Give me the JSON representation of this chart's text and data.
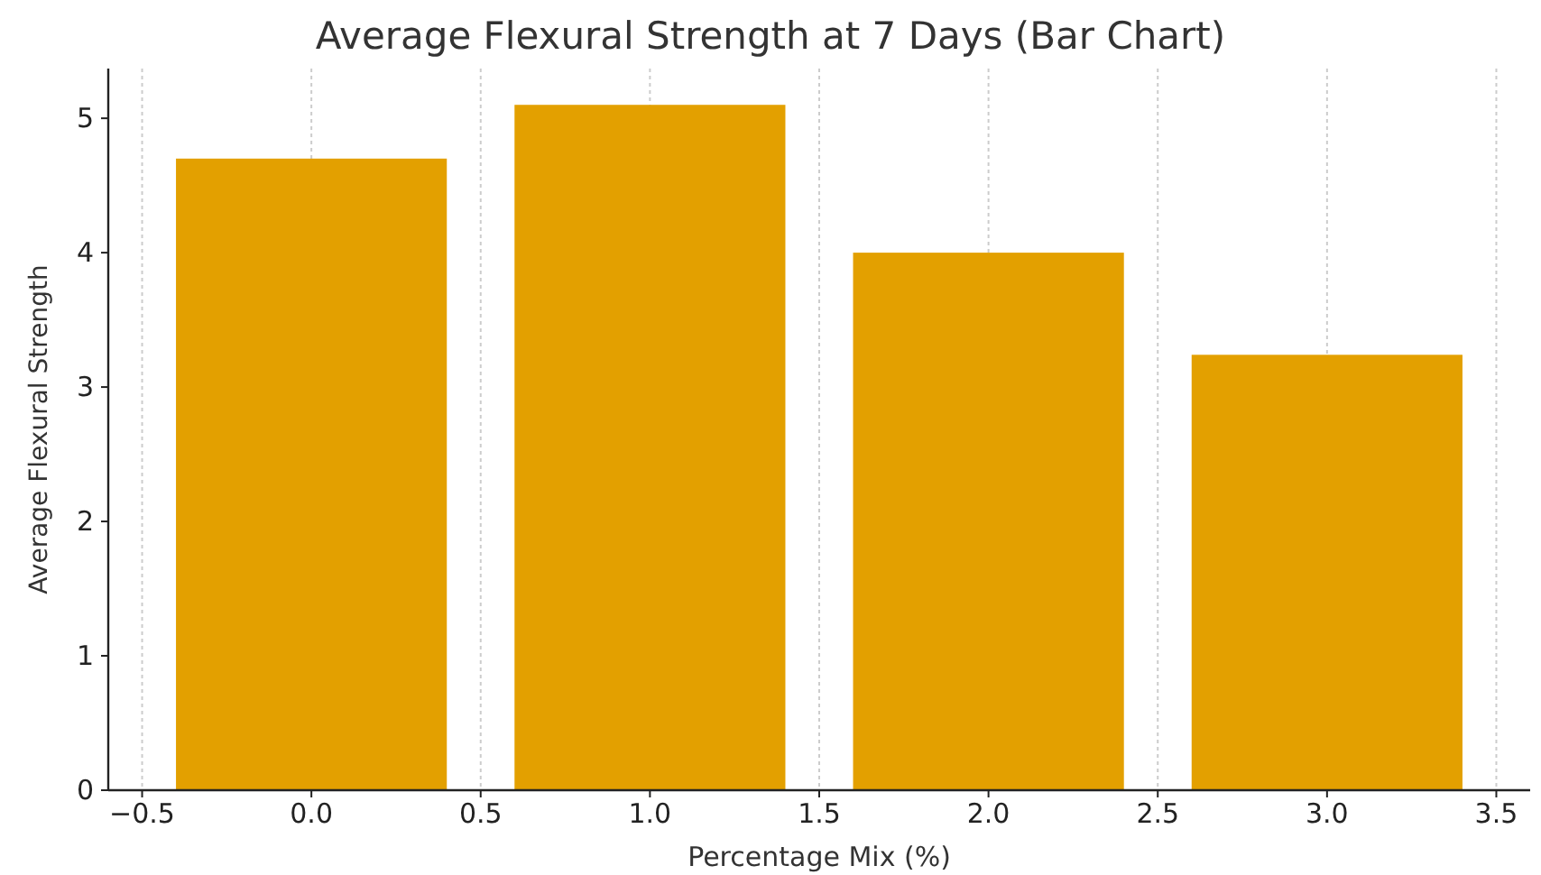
{
  "chart_data": {
    "type": "bar",
    "title": "Average Flexural Strength at 7 Days (Bar Chart)",
    "xlabel": "Percentage Mix (%)",
    "ylabel": "Average Flexural Strength",
    "x": [
      0,
      1,
      2,
      3
    ],
    "values": [
      4.7,
      5.1,
      4.0,
      3.24
    ],
    "color": "#e3a000",
    "xlim": [
      -0.6,
      3.6
    ],
    "xticks": [
      {
        "value": -0.5,
        "label": "−0.5"
      },
      {
        "value": 0,
        "label": "0.0"
      },
      {
        "value": 0.5,
        "label": "0.5"
      },
      {
        "value": 1,
        "label": "1.0"
      },
      {
        "value": 1.5,
        "label": "1.5"
      },
      {
        "value": 2,
        "label": "2.0"
      },
      {
        "value": 2.5,
        "label": "2.5"
      },
      {
        "value": 3,
        "label": "3.0"
      },
      {
        "value": 3.5,
        "label": "3.5"
      }
    ],
    "ylim": [
      0,
      5.37
    ],
    "yticks": [
      0,
      1,
      2,
      3,
      4,
      5
    ],
    "grid": "x"
  }
}
